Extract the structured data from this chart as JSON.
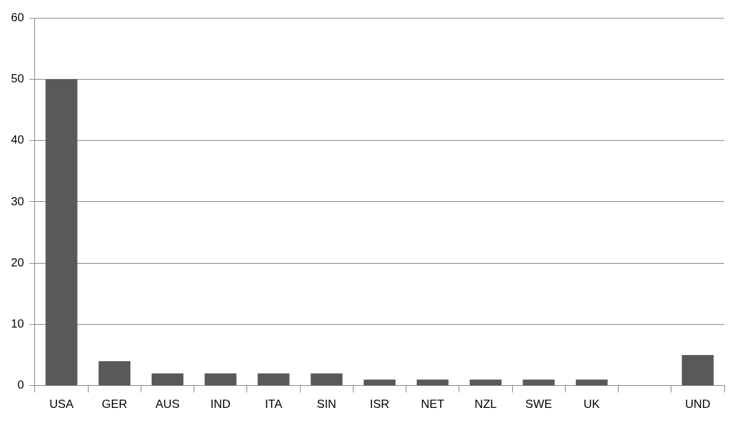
{
  "chart_data": {
    "type": "bar",
    "categories": [
      "USA",
      "GER",
      "AUS",
      "IND",
      "ITA",
      "SIN",
      "ISR",
      "NET",
      "NZL",
      "SWE",
      "UK",
      null,
      "UND"
    ],
    "values": [
      50,
      4,
      2,
      2,
      2,
      2,
      1,
      1,
      1,
      1,
      1,
      0,
      5
    ],
    "color": "#595959",
    "ylim": [
      0,
      60
    ],
    "yticks": [
      0,
      10,
      20,
      30,
      40,
      50,
      60
    ],
    "grid": "y",
    "legend": false
  }
}
